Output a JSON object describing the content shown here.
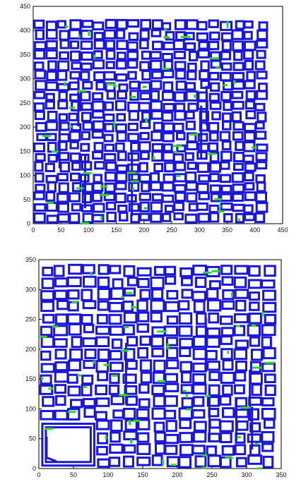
{
  "colors": {
    "rectangles": "#1a16d8",
    "markers": "#22dd22",
    "frame": "#000000"
  },
  "chart_data": [
    {
      "type": "scatter",
      "title": "",
      "xlabel": "",
      "ylabel": "",
      "xlim": [
        0,
        450
      ],
      "ylim": [
        0,
        450
      ],
      "x_ticks": [
        0,
        50,
        100,
        150,
        200,
        250,
        300,
        350,
        400,
        450
      ],
      "y_ticks": [
        0,
        50,
        100,
        150,
        200,
        250,
        300,
        350,
        400,
        450
      ],
      "x_tick_labels": [
        "0",
        "50",
        "100",
        "150",
        "200",
        "250",
        "300",
        "350",
        "400",
        "450"
      ],
      "y_tick_labels": [
        "0",
        "50",
        "100",
        "150",
        "200",
        "250",
        "300",
        "350",
        "400",
        "450"
      ],
      "grid": false,
      "legend": "none",
      "series": [
        {
          "marker": "square-outline",
          "color": "#1a16d8",
          "extent_x": [
            0,
            415
          ],
          "extent_y": [
            0,
            410
          ],
          "grid_step": [
            21,
            21
          ]
        },
        {
          "marker": "short-bar",
          "color": "#22dd22",
          "extent_x": [
            0,
            415
          ],
          "extent_y": [
            0,
            410
          ]
        }
      ]
    },
    {
      "type": "scatter",
      "title": "",
      "xlabel": "",
      "ylabel": "",
      "xlim": [
        0,
        350
      ],
      "ylim": [
        0,
        350
      ],
      "x_ticks": [
        0,
        50,
        100,
        150,
        200,
        250,
        300,
        350
      ],
      "y_ticks": [
        0,
        50,
        100,
        150,
        200,
        250,
        300,
        350
      ],
      "x_tick_labels": [
        "0",
        "50",
        "100",
        "150",
        "200",
        "250",
        "300",
        "350"
      ],
      "y_tick_labels": [
        "0",
        "50",
        "100",
        "150",
        "200",
        "250",
        "300",
        "350"
      ],
      "grid": false,
      "legend": "none",
      "series": [
        {
          "marker": "square-outline",
          "color": "#1a16d8",
          "extent_x": [
            0,
            340
          ],
          "extent_y": [
            0,
            340
          ],
          "grid_step": [
            20,
            20
          ]
        },
        {
          "marker": "short-bar",
          "color": "#22dd22",
          "extent_x": [
            0,
            340
          ],
          "extent_y": [
            0,
            340
          ]
        }
      ],
      "large_square": {
        "x": [
          5,
          80
        ],
        "y": [
          5,
          75
        ]
      }
    }
  ]
}
